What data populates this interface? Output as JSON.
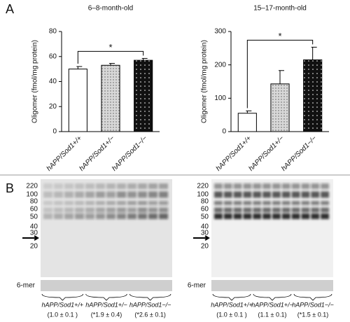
{
  "panel_a": "A",
  "panel_b": "B",
  "chart_data": [
    {
      "type": "bar",
      "title": "6–8-month-old",
      "ylabel": "Oligomer (fmol/mg protein)",
      "categories": [
        "hAPP/Sod1+/+",
        "hAPP/Sod1+/−",
        "hAPP/Sod1−/−"
      ],
      "values": [
        50,
        53,
        57
      ],
      "errors": [
        2,
        1.5,
        1.5
      ],
      "colors": [
        "#ffffff",
        "#d8d8d8",
        "#111111"
      ],
      "ylim": [
        0,
        80
      ],
      "yticks": [
        0,
        20,
        40,
        60,
        80
      ],
      "significance": "*"
    },
    {
      "type": "bar",
      "title": "15–17-month-old",
      "ylabel": "Oligomer (fmol/mg protein)",
      "categories": [
        "hAPP/Sod1+/+",
        "hAPP/Sod1+/−",
        "hAPP/Sod1−/−"
      ],
      "values": [
        55,
        143,
        215
      ],
      "errors": [
        7,
        40,
        38
      ],
      "colors": [
        "#ffffff",
        "#d8d8d8",
        "#111111"
      ],
      "ylim": [
        0,
        300
      ],
      "yticks": [
        0,
        100,
        200,
        300
      ],
      "significance": "*"
    }
  ],
  "blots": [
    {
      "markers": [
        "220",
        "100",
        "80",
        "60",
        "50",
        "40",
        "30",
        "20"
      ],
      "oligomer": "6-mer",
      "groups": [
        {
          "genotype": "hAPP/Sod1+/+",
          "ratio": "(1.0 ± 0.1 )"
        },
        {
          "genotype": "hAPP/Sod1+/−",
          "ratio": "(*1.9 ± 0.4)"
        },
        {
          "genotype": "hAPP/Sod1−/−",
          "ratio": "(*2.6 ± 0.1)"
        }
      ]
    },
    {
      "markers": [
        "220",
        "100",
        "80",
        "60",
        "50",
        "40",
        "30",
        "20"
      ],
      "oligomer": "6-mer",
      "groups": [
        {
          "genotype": "hAPP/Sod1+/+",
          "ratio": "(1.0 ± 0.1 )"
        },
        {
          "genotype": "hAPP/Sod1+/−",
          "ratio": "(1.1 ± 0.1)"
        },
        {
          "genotype": "hAPP/Sod1−/−",
          "ratio": "(*1.5 ± 0.1)"
        }
      ]
    }
  ]
}
